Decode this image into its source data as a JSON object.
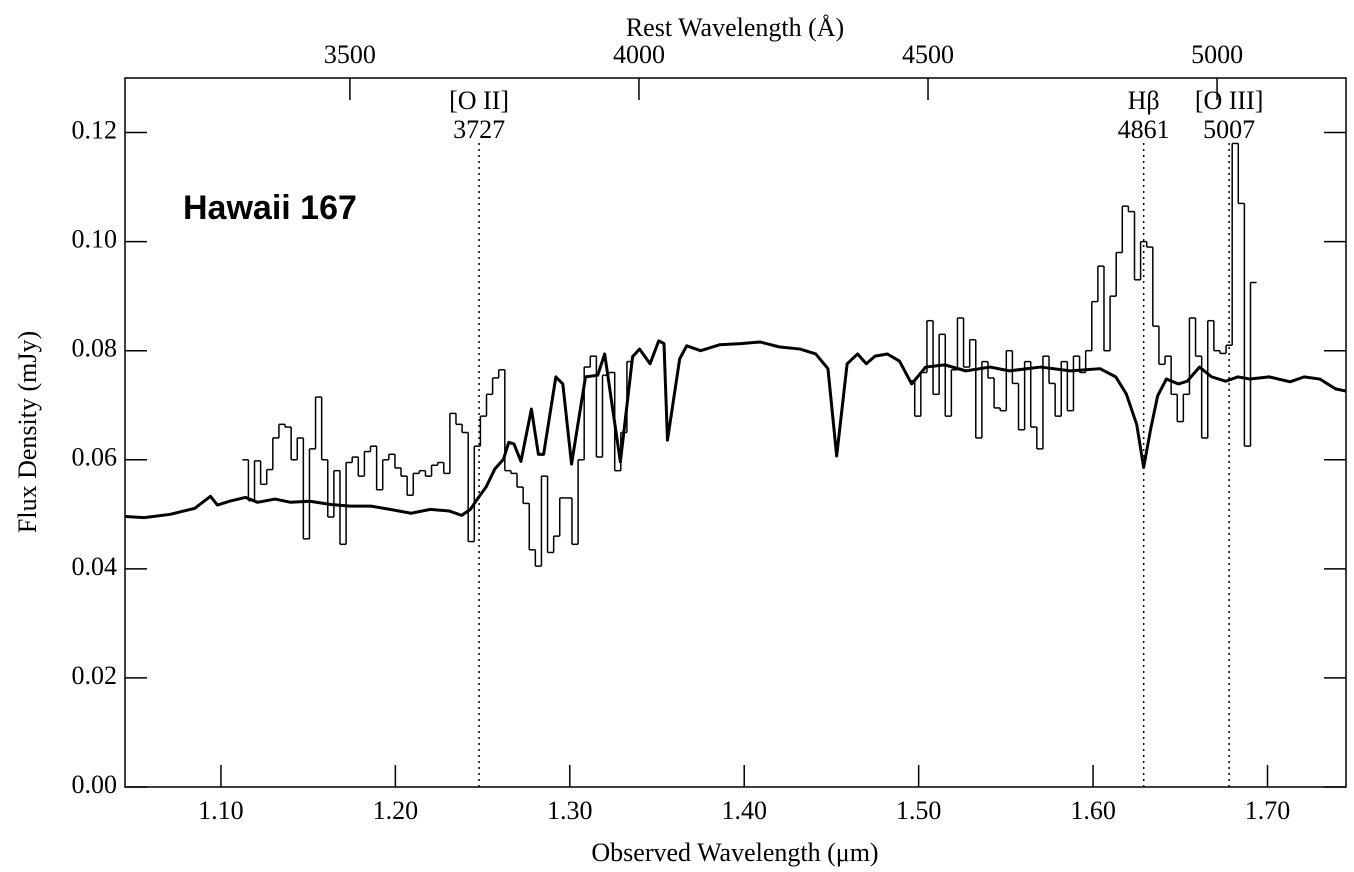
{
  "chart_data": {
    "type": "spectrum",
    "xlabel": "Observed Wavelength (μm)",
    "x2label": "Rest Wavelength (Å)",
    "ylabel": "Flux Density (mJy)",
    "annotation": "Hawaii 167",
    "xlim": [
      1.045,
      1.745
    ],
    "xticks": [
      {
        "value": 1.1,
        "label": "1.10"
      },
      {
        "value": 1.2,
        "label": "1.20"
      },
      {
        "value": 1.3,
        "label": "1.30"
      },
      {
        "value": 1.4,
        "label": "1.40"
      },
      {
        "value": 1.5,
        "label": "1.50"
      },
      {
        "value": 1.6,
        "label": "1.60"
      },
      {
        "value": 1.7,
        "label": "1.70"
      }
    ],
    "x2lim": [
      3111,
      5223
    ],
    "x2ticks": [
      3500,
      4000,
      4500,
      5000
    ],
    "ylim": [
      0,
      0.13
    ],
    "yticks": [
      {
        "value": 0,
        "label": "0.00"
      },
      0.02,
      0.04,
      0.06,
      0.08,
      {
        "value": 0.1,
        "label": "0.10"
      },
      0.12
    ],
    "lines": [
      {
        "x": 1.248,
        "label": "[O II]",
        "wavelength": 3727
      },
      {
        "x": 1.629,
        "label": "Hβ",
        "wavelength": 4861
      },
      {
        "x": 1.678,
        "label": "[O III]",
        "wavelength": 5007
      }
    ],
    "series": [
      {
        "name": "observed",
        "style": "step",
        "color": "#000000",
        "bin_width": 0.0035,
        "x": [
          1.114,
          1.1175,
          1.121,
          1.1245,
          1.128,
          1.1315,
          1.135,
          1.1385,
          1.142,
          1.1455,
          1.149,
          1.1525,
          1.156,
          1.1595,
          1.163,
          1.1665,
          1.17,
          1.1735,
          1.177,
          1.1805,
          1.184,
          1.1875,
          1.191,
          1.1945,
          1.198,
          1.2015,
          1.205,
          1.2085,
          1.212,
          1.2155,
          1.219,
          1.2225,
          1.226,
          1.2295,
          1.233,
          1.2365,
          1.24,
          1.2435,
          1.247,
          1.2505,
          1.254,
          1.2575,
          1.261,
          1.2645,
          1.268,
          1.2715,
          1.275,
          1.2785,
          1.282,
          1.2855,
          1.289,
          1.2925,
          1.296,
          1.2995,
          1.303,
          1.3065,
          1.31,
          1.3135,
          1.317,
          1.3205,
          1.324,
          1.3275,
          1.331,
          1.3345,
          1.415,
          1.496,
          1.4995,
          1.503,
          1.5065,
          1.51,
          1.5135,
          1.517,
          1.5205,
          1.524,
          1.5275,
          1.531,
          1.5345,
          1.538,
          1.5415,
          1.545,
          1.5485,
          1.552,
          1.5555,
          1.559,
          1.5625,
          1.566,
          1.5695,
          1.573,
          1.5765,
          1.58,
          1.5835,
          1.587,
          1.5905,
          1.594,
          1.5975,
          1.601,
          1.6045,
          1.608,
          1.6115,
          1.615,
          1.6185,
          1.622,
          1.6255,
          1.629,
          1.6325,
          1.636,
          1.6395,
          1.643,
          1.6465,
          1.65,
          1.6535,
          1.657,
          1.6605,
          1.664,
          1.6675,
          1.671,
          1.6745,
          1.678,
          1.6815,
          1.685,
          1.6885,
          1.692
        ],
        "values": [
          0.06,
          0.0525,
          0.0598,
          0.0555,
          0.0582,
          0.064,
          0.0665,
          0.066,
          0.06,
          0.064,
          0.0455,
          0.062,
          0.0715,
          0.06,
          0.0495,
          0.058,
          0.0445,
          0.0595,
          0.0605,
          0.057,
          0.0615,
          0.0625,
          0.0545,
          0.06,
          0.061,
          0.0585,
          0.057,
          0.0535,
          0.0575,
          0.058,
          0.057,
          0.059,
          0.0595,
          0.0575,
          0.0685,
          0.0665,
          0.065,
          0.045,
          0.0625,
          0.068,
          0.072,
          0.075,
          0.0765,
          0.058,
          0.0575,
          0.055,
          0.052,
          0.0435,
          0.0405,
          0.057,
          0.043,
          0.046,
          0.053,
          0.053,
          0.0445,
          0.06,
          0.077,
          0.079,
          0.0605,
          0.0755,
          0.076,
          0.058,
          0.065,
          0.078,
          null,
          0.0745,
          0.068,
          0.076,
          0.0855,
          0.072,
          0.083,
          0.068,
          0.0765,
          0.086,
          0.077,
          0.082,
          0.064,
          0.078,
          0.075,
          0.0695,
          0.069,
          0.08,
          0.074,
          0.0655,
          0.078,
          0.066,
          0.062,
          0.079,
          0.074,
          0.068,
          0.078,
          0.069,
          0.079,
          0.076,
          0.08,
          0.089,
          0.0955,
          0.08,
          0.09,
          0.098,
          0.1065,
          0.1055,
          0.093,
          0.1,
          0.099,
          0.0845,
          0.0775,
          0.079,
          0.072,
          0.067,
          0.072,
          0.086,
          0.079,
          0.064,
          0.0855,
          0.08,
          0.0795,
          0.081,
          0.118,
          0.107,
          0.0625,
          0.0925
        ]
      },
      {
        "name": "model",
        "style": "line",
        "color": "#000000",
        "x": [
          1.045,
          1.056,
          1.071,
          1.085,
          1.094,
          1.098,
          1.105,
          1.114,
          1.121,
          1.131,
          1.14,
          1.151,
          1.163,
          1.174,
          1.186,
          1.197,
          1.209,
          1.22,
          1.231,
          1.238,
          1.243,
          1.247,
          1.252,
          1.257,
          1.262,
          1.265,
          1.268,
          1.272,
          1.278,
          1.282,
          1.285,
          1.292,
          1.296,
          1.301,
          1.309,
          1.316,
          1.32,
          1.329,
          1.336,
          1.34,
          1.346,
          1.351,
          1.354,
          1.356,
          1.363,
          1.367,
          1.375,
          1.386,
          1.398,
          1.409,
          1.42,
          1.432,
          1.441,
          1.448,
          1.453,
          1.459,
          1.465,
          1.47,
          1.475,
          1.482,
          1.489,
          1.496,
          1.504,
          1.515,
          1.527,
          1.541,
          1.552,
          1.57,
          1.587,
          1.604,
          1.613,
          1.619,
          1.625,
          1.629,
          1.633,
          1.637,
          1.642,
          1.649,
          1.654,
          1.661,
          1.668,
          1.676,
          1.683,
          1.69,
          1.701,
          1.713,
          1.721,
          1.73,
          1.739,
          1.745
        ],
        "values": [
          0.0496,
          0.0494,
          0.05,
          0.0511,
          0.0533,
          0.0517,
          0.0524,
          0.0531,
          0.0522,
          0.0528,
          0.0522,
          0.0524,
          0.0518,
          0.0515,
          0.0515,
          0.0509,
          0.0502,
          0.0509,
          0.0506,
          0.0498,
          0.0509,
          0.0528,
          0.055,
          0.0583,
          0.0601,
          0.0632,
          0.0629,
          0.0597,
          0.0693,
          0.061,
          0.061,
          0.0752,
          0.0739,
          0.0592,
          0.0752,
          0.0755,
          0.0794,
          0.0596,
          0.0789,
          0.0803,
          0.0776,
          0.0818,
          0.0813,
          0.0636,
          0.0785,
          0.0809,
          0.08,
          0.0811,
          0.0813,
          0.0816,
          0.0807,
          0.0803,
          0.0794,
          0.0767,
          0.0607,
          0.0776,
          0.0794,
          0.0776,
          0.079,
          0.0794,
          0.0781,
          0.0739,
          0.077,
          0.0774,
          0.0763,
          0.077,
          0.0763,
          0.077,
          0.0763,
          0.0767,
          0.0752,
          0.0721,
          0.0665,
          0.0586,
          0.0656,
          0.0717,
          0.0748,
          0.0739,
          0.0744,
          0.077,
          0.0752,
          0.0744,
          0.0752,
          0.0748,
          0.0752,
          0.0743,
          0.0752,
          0.0748,
          0.073,
          0.0726
        ]
      }
    ]
  }
}
